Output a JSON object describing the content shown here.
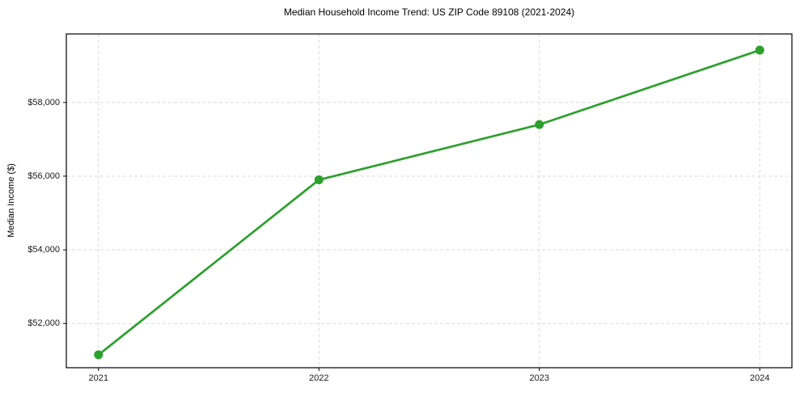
{
  "figure": {
    "background": "#ffffff"
  },
  "chart_data": {
    "type": "line",
    "title": "Median Household Income Trend: US ZIP Code 89108 (2021-2024)",
    "xlabel": "",
    "ylabel": "Median Income ($)",
    "x": [
      "2021",
      "2022",
      "2023",
      "2024"
    ],
    "series": [
      {
        "values": [
          51150,
          55900,
          57400,
          59420
        ],
        "color": "#2ca02c",
        "marker": "circle",
        "line_width": 2.7,
        "marker_size": 11
      }
    ],
    "ylim": [
      50800,
      59860
    ],
    "yticks": [
      52000,
      54000,
      56000,
      58000
    ],
    "ytick_labels": [
      "$52,000",
      "$54,000",
      "$56,000",
      "$58,000"
    ],
    "xtick_labels": [
      "2021",
      "2022",
      "2023",
      "2024"
    ],
    "grid": true,
    "grid_style": "dashed",
    "grid_color": "#d9d9d9",
    "axis_color": "#000000",
    "legend": false
  }
}
